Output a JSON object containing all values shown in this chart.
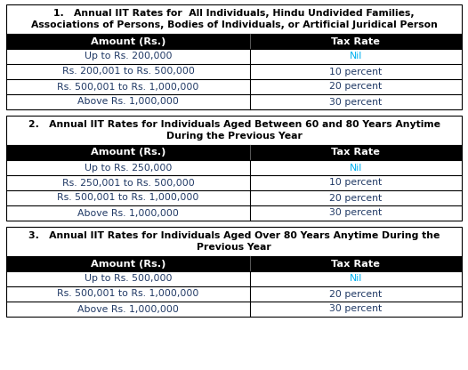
{
  "table1": {
    "title_line1": "1.   Annual IIT Rates for  All Individuals, Hindu Undivided Families,",
    "title_line2": "Associations of Persons, Bodies of Individuals, or Artificial Juridical Person",
    "headers": [
      "Amount (Rs.)",
      "Tax Rate"
    ],
    "rows": [
      [
        "Up to Rs. 200,000",
        "Nil"
      ],
      [
        "Rs. 200,001 to Rs. 500,000",
        "10 percent"
      ],
      [
        "Rs. 500,001 to Rs. 1,000,000",
        "20 percent"
      ],
      [
        "Above Rs. 1,000,000",
        "30 percent"
      ]
    ]
  },
  "table2": {
    "title_line1": "2.   Annual IIT Rates for Individuals Aged Between 60 and 80 Years Anytime",
    "title_line2": "During the Previous Year",
    "headers": [
      "Amount (Rs.)",
      "Tax Rate"
    ],
    "rows": [
      [
        "Up to Rs. 250,000",
        "Nil"
      ],
      [
        "Rs. 250,001 to Rs. 500,000",
        "10 percent"
      ],
      [
        "Rs. 500,001 to Rs. 1,000,000",
        "20 percent"
      ],
      [
        "Above Rs. 1,000,000",
        "30 percent"
      ]
    ]
  },
  "table3": {
    "title_line1": "3.   Annual IIT Rates for Individuals Aged Over 80 Years Anytime During the",
    "title_line2": "Previous Year",
    "headers": [
      "Amount (Rs.)",
      "Tax Rate"
    ],
    "rows": [
      [
        "Up to Rs. 500,000",
        "Nil"
      ],
      [
        "Rs. 500,001 to Rs. 1,000,000",
        "20 percent"
      ],
      [
        "Above Rs. 1,000,000",
        "30 percent"
      ]
    ]
  },
  "bg_color": "#ffffff",
  "header_bg": "#000000",
  "header_fg": "#ffffff",
  "title_fg": "#000000",
  "border_color": "#000000",
  "nil_color": "#00b0f0",
  "row_fg": "#000000",
  "row_data_color": "#1f3864",
  "title_fontsize": 7.8,
  "header_fontsize": 8.2,
  "row_fontsize": 7.8,
  "col_split": 0.535
}
